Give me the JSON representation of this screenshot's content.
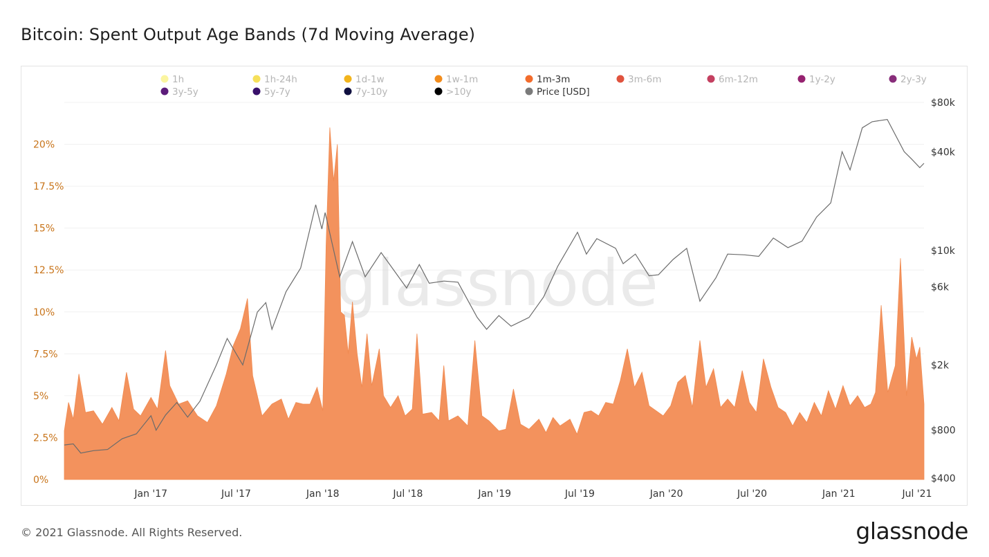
{
  "page": {
    "title": "Bitcoin: Spent Output Age Bands (7d Moving Average)",
    "copyright": "© 2021 Glassnode. All Rights Reserved.",
    "brand": "glassnode",
    "watermark": "glassnode"
  },
  "chart_data": {
    "type": "area",
    "title": "Bitcoin: Spent Output Age Bands (7d Moving Average)",
    "x_ticks": [
      "Jan '17",
      "Jul '17",
      "Jan '18",
      "Jul '18",
      "Jan '19",
      "Jul '19",
      "Jan '20",
      "Jul '20",
      "Jan '21",
      "Jul '21"
    ],
    "x_range": [
      "2016-07-01",
      "2021-07-01"
    ],
    "y_left": {
      "ticks": [
        "0%",
        "2.5%",
        "5%",
        "7.5%",
        "10%",
        "12.5%",
        "15%",
        "17.5%",
        "20%"
      ],
      "range": [
        0,
        22.5
      ],
      "color": "#c8741a"
    },
    "y_right": {
      "scale": "log",
      "ticks": [
        "$400",
        "$800",
        "$2k",
        "$6k",
        "$10k",
        "$40k",
        "$80k"
      ],
      "tick_values": [
        400,
        800,
        2000,
        6000,
        10000,
        40000,
        80000
      ],
      "range_usd": [
        400,
        80000
      ]
    },
    "legend": [
      {
        "name": "1h",
        "color": "#fbf5a0",
        "active": false
      },
      {
        "name": "1h-24h",
        "color": "#f6e05a",
        "active": false
      },
      {
        "name": "1d-1w",
        "color": "#f2b41c",
        "active": false
      },
      {
        "name": "1w-1m",
        "color": "#f28c1c",
        "active": false
      },
      {
        "name": "1m-3m",
        "color": "#f26c2c",
        "active": true
      },
      {
        "name": "3m-6m",
        "color": "#e0533e",
        "active": false
      },
      {
        "name": "6m-12m",
        "color": "#c44060",
        "active": false
      },
      {
        "name": "1y-2y",
        "color": "#962270",
        "active": false
      },
      {
        "name": "2y-3y",
        "color": "#882d7a",
        "active": false
      },
      {
        "name": "3y-5y",
        "color": "#5c1c7a",
        "active": false
      },
      {
        "name": "5y-7y",
        "color": "#38106a",
        "active": false
      },
      {
        "name": "7y-10y",
        "color": "#101040",
        "active": false
      },
      {
        "name": ">10y",
        "color": "#000000",
        "active": false
      },
      {
        "name": "Price [USD]",
        "color": "#7a7a7a",
        "active": true
      }
    ],
    "series": [
      {
        "name": "1m-3m",
        "unit": "%",
        "color": "#f3925d",
        "points": [
          [
            "2016-07-01",
            2.9
          ],
          [
            "2016-07-10",
            4.6
          ],
          [
            "2016-07-20",
            3.6
          ],
          [
            "2016-08-01",
            6.3
          ],
          [
            "2016-08-15",
            4.0
          ],
          [
            "2016-09-01",
            4.1
          ],
          [
            "2016-09-20",
            3.3
          ],
          [
            "2016-10-10",
            4.3
          ],
          [
            "2016-10-25",
            3.5
          ],
          [
            "2016-11-10",
            6.4
          ],
          [
            "2016-11-25",
            4.2
          ],
          [
            "2016-12-10",
            3.8
          ],
          [
            "2017-01-01",
            4.9
          ],
          [
            "2017-01-15",
            4.2
          ],
          [
            "2017-02-01",
            7.7
          ],
          [
            "2017-02-10",
            5.6
          ],
          [
            "2017-03-01",
            4.5
          ],
          [
            "2017-03-20",
            4.7
          ],
          [
            "2017-04-10",
            3.8
          ],
          [
            "2017-05-01",
            3.4
          ],
          [
            "2017-05-20",
            4.4
          ],
          [
            "2017-06-10",
            6.3
          ],
          [
            "2017-06-25",
            8.0
          ],
          [
            "2017-07-10",
            9.0
          ],
          [
            "2017-07-25",
            10.8
          ],
          [
            "2017-08-05",
            6.2
          ],
          [
            "2017-08-25",
            3.8
          ],
          [
            "2017-09-15",
            4.5
          ],
          [
            "2017-10-05",
            4.8
          ],
          [
            "2017-10-20",
            3.6
          ],
          [
            "2017-11-05",
            4.6
          ],
          [
            "2017-11-20",
            4.5
          ],
          [
            "2017-12-05",
            4.5
          ],
          [
            "2017-12-20",
            5.5
          ],
          [
            "2018-01-01",
            4.1
          ],
          [
            "2018-01-08",
            14.0
          ],
          [
            "2018-01-16",
            21.0
          ],
          [
            "2018-01-24",
            17.8
          ],
          [
            "2018-02-01",
            20.0
          ],
          [
            "2018-02-08",
            10.0
          ],
          [
            "2018-02-16",
            9.8
          ],
          [
            "2018-02-24",
            7.5
          ],
          [
            "2018-03-05",
            10.6
          ],
          [
            "2018-03-15",
            7.5
          ],
          [
            "2018-03-25",
            5.5
          ],
          [
            "2018-04-05",
            8.7
          ],
          [
            "2018-04-15",
            5.6
          ],
          [
            "2018-05-01",
            7.8
          ],
          [
            "2018-05-10",
            5.0
          ],
          [
            "2018-05-25",
            4.3
          ],
          [
            "2018-06-10",
            5.0
          ],
          [
            "2018-06-25",
            3.8
          ],
          [
            "2018-07-10",
            4.2
          ],
          [
            "2018-07-20",
            8.7
          ],
          [
            "2018-08-01",
            3.9
          ],
          [
            "2018-08-20",
            4.0
          ],
          [
            "2018-09-05",
            3.5
          ],
          [
            "2018-09-15",
            6.8
          ],
          [
            "2018-09-25",
            3.5
          ],
          [
            "2018-10-15",
            3.8
          ],
          [
            "2018-11-05",
            3.2
          ],
          [
            "2018-11-20",
            8.3
          ],
          [
            "2018-12-05",
            3.8
          ],
          [
            "2018-12-20",
            3.5
          ],
          [
            "2019-01-10",
            2.9
          ],
          [
            "2019-01-25",
            3.0
          ],
          [
            "2019-02-10",
            5.4
          ],
          [
            "2019-02-25",
            3.3
          ],
          [
            "2019-03-15",
            3.0
          ],
          [
            "2019-04-05",
            3.6
          ],
          [
            "2019-04-20",
            2.8
          ],
          [
            "2019-05-05",
            3.7
          ],
          [
            "2019-05-20",
            3.2
          ],
          [
            "2019-06-10",
            3.6
          ],
          [
            "2019-06-25",
            2.7
          ],
          [
            "2019-07-10",
            4.0
          ],
          [
            "2019-07-25",
            4.1
          ],
          [
            "2019-08-10",
            3.8
          ],
          [
            "2019-08-25",
            4.6
          ],
          [
            "2019-09-10",
            4.5
          ],
          [
            "2019-09-25",
            5.9
          ],
          [
            "2019-10-10",
            7.8
          ],
          [
            "2019-10-25",
            5.5
          ],
          [
            "2019-11-10",
            6.4
          ],
          [
            "2019-11-25",
            4.4
          ],
          [
            "2019-12-10",
            4.1
          ],
          [
            "2019-12-25",
            3.8
          ],
          [
            "2020-01-10",
            4.4
          ],
          [
            "2020-01-25",
            5.8
          ],
          [
            "2020-02-10",
            6.2
          ],
          [
            "2020-02-25",
            4.3
          ],
          [
            "2020-03-12",
            8.3
          ],
          [
            "2020-03-25",
            5.5
          ],
          [
            "2020-04-10",
            6.6
          ],
          [
            "2020-04-25",
            4.3
          ],
          [
            "2020-05-10",
            4.8
          ],
          [
            "2020-05-25",
            4.3
          ],
          [
            "2020-06-10",
            6.5
          ],
          [
            "2020-06-25",
            4.6
          ],
          [
            "2020-07-10",
            4.0
          ],
          [
            "2020-07-25",
            7.2
          ],
          [
            "2020-08-10",
            5.5
          ],
          [
            "2020-08-25",
            4.3
          ],
          [
            "2020-09-10",
            4.0
          ],
          [
            "2020-09-25",
            3.2
          ],
          [
            "2020-10-10",
            4.0
          ],
          [
            "2020-10-25",
            3.4
          ],
          [
            "2020-11-10",
            4.6
          ],
          [
            "2020-11-25",
            3.8
          ],
          [
            "2020-12-10",
            5.3
          ],
          [
            "2020-12-25",
            4.2
          ],
          [
            "2021-01-10",
            5.6
          ],
          [
            "2021-01-25",
            4.4
          ],
          [
            "2021-02-10",
            5.0
          ],
          [
            "2021-02-25",
            4.3
          ],
          [
            "2021-03-10",
            4.5
          ],
          [
            "2021-03-20",
            5.2
          ],
          [
            "2021-04-01",
            10.4
          ],
          [
            "2021-04-15",
            5.2
          ],
          [
            "2021-05-01",
            6.8
          ],
          [
            "2021-05-12",
            13.2
          ],
          [
            "2021-05-25",
            5.0
          ],
          [
            "2021-06-05",
            8.5
          ],
          [
            "2021-06-15",
            7.2
          ],
          [
            "2021-06-22",
            7.9
          ],
          [
            "2021-07-01",
            4.5
          ]
        ]
      },
      {
        "name": "Price [USD]",
        "axis": "right",
        "color": "#6b6b6b",
        "points": [
          [
            "2016-07-01",
            650
          ],
          [
            "2016-07-20",
            660
          ],
          [
            "2016-08-05",
            580
          ],
          [
            "2016-09-01",
            600
          ],
          [
            "2016-10-01",
            610
          ],
          [
            "2016-11-01",
            710
          ],
          [
            "2016-12-01",
            760
          ],
          [
            "2017-01-01",
            980
          ],
          [
            "2017-01-12",
            800
          ],
          [
            "2017-02-01",
            990
          ],
          [
            "2017-02-25",
            1180
          ],
          [
            "2017-03-20",
            960
          ],
          [
            "2017-04-15",
            1200
          ],
          [
            "2017-05-20",
            2000
          ],
          [
            "2017-06-12",
            2900
          ],
          [
            "2017-07-15",
            2000
          ],
          [
            "2017-08-15",
            4200
          ],
          [
            "2017-09-02",
            4800
          ],
          [
            "2017-09-15",
            3300
          ],
          [
            "2017-10-15",
            5600
          ],
          [
            "2017-11-15",
            7800
          ],
          [
            "2017-12-17",
            19000
          ],
          [
            "2017-12-30",
            13500
          ],
          [
            "2018-01-06",
            17000
          ],
          [
            "2018-02-06",
            6900
          ],
          [
            "2018-03-05",
            11300
          ],
          [
            "2018-04-01",
            6900
          ],
          [
            "2018-05-05",
            9700
          ],
          [
            "2018-06-28",
            5900
          ],
          [
            "2018-07-25",
            8200
          ],
          [
            "2018-08-15",
            6300
          ],
          [
            "2018-09-15",
            6500
          ],
          [
            "2018-10-15",
            6400
          ],
          [
            "2018-11-25",
            3900
          ],
          [
            "2018-12-15",
            3300
          ],
          [
            "2019-01-10",
            4000
          ],
          [
            "2019-02-05",
            3450
          ],
          [
            "2019-03-15",
            3900
          ],
          [
            "2019-04-15",
            5200
          ],
          [
            "2019-05-15",
            8000
          ],
          [
            "2019-06-26",
            12900
          ],
          [
            "2019-07-15",
            9500
          ],
          [
            "2019-08-06",
            11800
          ],
          [
            "2019-09-15",
            10300
          ],
          [
            "2019-10-01",
            8300
          ],
          [
            "2019-10-27",
            9500
          ],
          [
            "2019-11-25",
            7000
          ],
          [
            "2019-12-15",
            7100
          ],
          [
            "2020-01-15",
            8800
          ],
          [
            "2020-02-13",
            10300
          ],
          [
            "2020-03-12",
            4900
          ],
          [
            "2020-04-15",
            6800
          ],
          [
            "2020-05-10",
            9500
          ],
          [
            "2020-06-15",
            9400
          ],
          [
            "2020-07-15",
            9200
          ],
          [
            "2020-08-15",
            11900
          ],
          [
            "2020-09-15",
            10400
          ],
          [
            "2020-10-15",
            11400
          ],
          [
            "2020-11-15",
            16000
          ],
          [
            "2020-12-15",
            19500
          ],
          [
            "2021-01-08",
            40000
          ],
          [
            "2021-01-25",
            31000
          ],
          [
            "2021-02-20",
            56000
          ],
          [
            "2021-03-13",
            61000
          ],
          [
            "2021-04-14",
            63000
          ],
          [
            "2021-05-20",
            40000
          ],
          [
            "2021-06-05",
            36000
          ],
          [
            "2021-06-22",
            32000
          ],
          [
            "2021-07-01",
            34000
          ]
        ]
      }
    ]
  }
}
